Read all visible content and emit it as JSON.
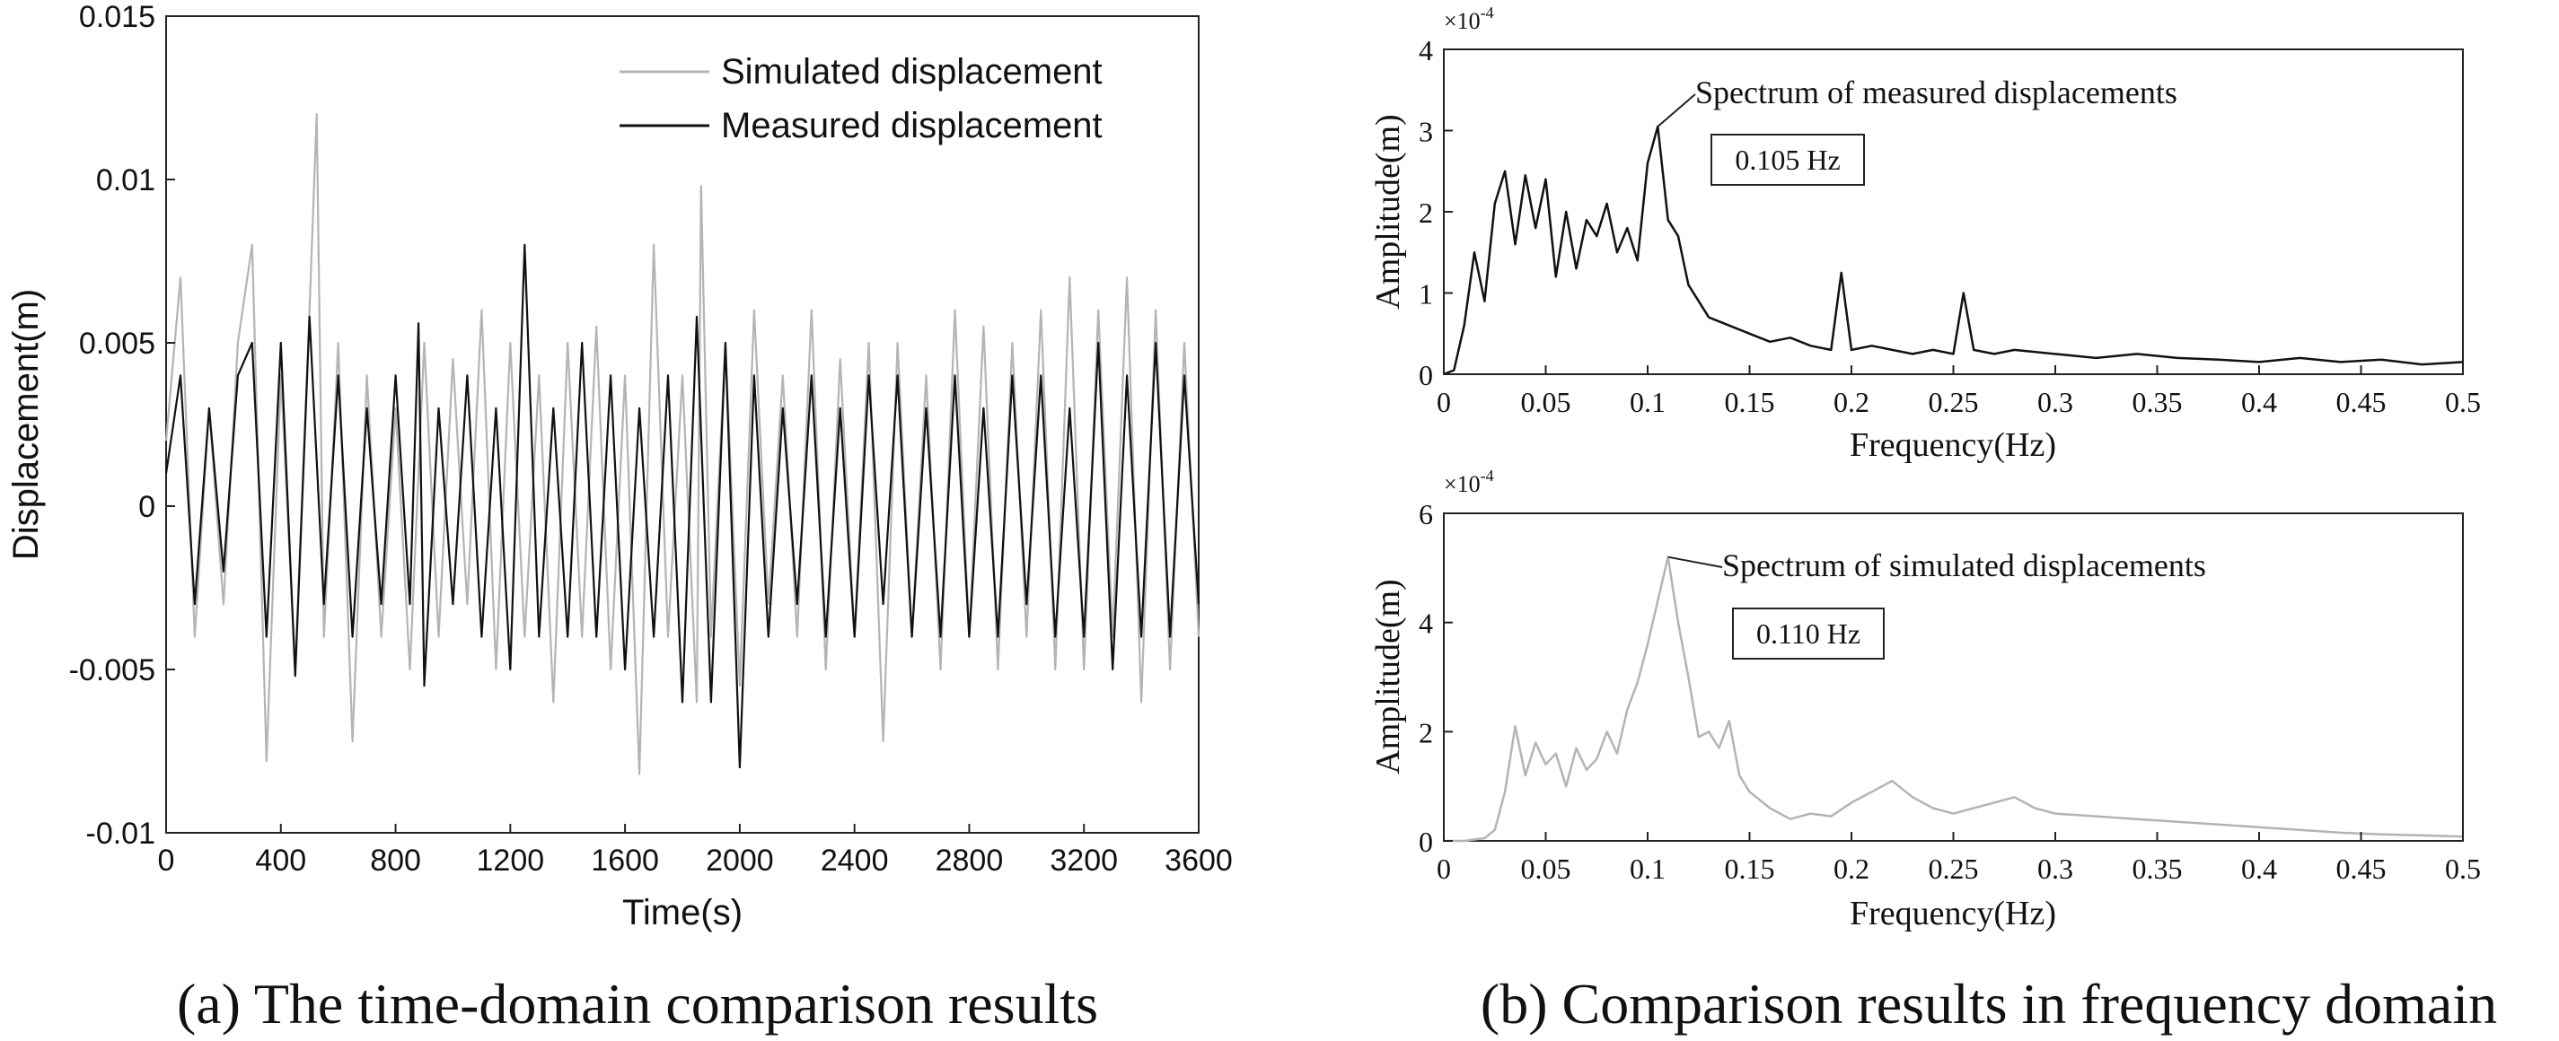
{
  "chart_data": [
    {
      "id": "time_domain",
      "type": "line",
      "title": "",
      "xlabel": "Time(s)",
      "ylabel": "Displacement(m)",
      "xlim": [
        0,
        3600
      ],
      "ylim": [
        -0.01,
        0.015
      ],
      "xticks": [
        0,
        400,
        800,
        1200,
        1600,
        2000,
        2400,
        2800,
        3200,
        3600
      ],
      "xtick_labels": [
        "0",
        "400",
        "800",
        "1200",
        "1600",
        "2000",
        "2400",
        "2800",
        "3200",
        "3600"
      ],
      "yticks": [
        -0.01,
        -0.005,
        0,
        0.005,
        0.01,
        0.015
      ],
      "ytick_labels": [
        "-0.01",
        "-0.005",
        "0",
        "0.005",
        "0.01",
        "0.015"
      ],
      "grid": false,
      "legend_position": "top-right",
      "series": [
        {
          "name": "Simulated displacement",
          "color": "#b4b4b4",
          "x": [
            0,
            50,
            100,
            150,
            200,
            250,
            300,
            350,
            400,
            450,
            500,
            525,
            550,
            600,
            650,
            700,
            750,
            800,
            850,
            900,
            950,
            1000,
            1050,
            1100,
            1150,
            1200,
            1250,
            1300,
            1350,
            1400,
            1450,
            1500,
            1550,
            1600,
            1650,
            1700,
            1750,
            1800,
            1850,
            1865,
            1900,
            1950,
            2000,
            2050,
            2100,
            2150,
            2200,
            2250,
            2300,
            2350,
            2400,
            2450,
            2500,
            2550,
            2600,
            2650,
            2700,
            2750,
            2800,
            2850,
            2900,
            2950,
            3000,
            3050,
            3100,
            3150,
            3200,
            3250,
            3300,
            3350,
            3400,
            3450,
            3500,
            3550,
            3600
          ],
          "values": [
            0.002,
            0.007,
            -0.004,
            0.003,
            -0.003,
            0.005,
            0.008,
            -0.0078,
            0.004,
            -0.005,
            0.006,
            0.012,
            -0.004,
            0.005,
            -0.0072,
            0.004,
            -0.004,
            0.003,
            -0.005,
            0.005,
            -0.004,
            0.0045,
            -0.003,
            0.006,
            -0.005,
            0.005,
            -0.004,
            0.004,
            -0.006,
            0.005,
            -0.004,
            0.0055,
            -0.005,
            0.004,
            -0.0082,
            0.008,
            -0.004,
            0.004,
            -0.006,
            0.0098,
            -0.004,
            0.005,
            -0.0055,
            0.006,
            -0.003,
            0.004,
            -0.004,
            0.006,
            -0.005,
            0.0045,
            -0.004,
            0.005,
            -0.0072,
            0.005,
            -0.004,
            0.004,
            -0.005,
            0.006,
            -0.004,
            0.0055,
            -0.005,
            0.005,
            -0.004,
            0.006,
            -0.005,
            0.007,
            -0.005,
            0.006,
            -0.004,
            0.007,
            -0.006,
            0.006,
            -0.005,
            0.005,
            -0.004
          ]
        },
        {
          "name": "Measured displacement",
          "color": "#111111",
          "x": [
            0,
            50,
            100,
            150,
            200,
            250,
            300,
            350,
            400,
            450,
            500,
            550,
            600,
            650,
            700,
            750,
            800,
            850,
            880,
            900,
            950,
            1000,
            1050,
            1100,
            1150,
            1200,
            1250,
            1300,
            1350,
            1400,
            1450,
            1500,
            1550,
            1600,
            1650,
            1700,
            1750,
            1800,
            1850,
            1900,
            1950,
            2000,
            2050,
            2100,
            2150,
            2200,
            2250,
            2300,
            2350,
            2400,
            2450,
            2500,
            2550,
            2600,
            2650,
            2700,
            2750,
            2800,
            2850,
            2900,
            2950,
            3000,
            3050,
            3100,
            3150,
            3200,
            3250,
            3300,
            3350,
            3400,
            3450,
            3500,
            3550,
            3600
          ],
          "values": [
            0.001,
            0.004,
            -0.003,
            0.003,
            -0.002,
            0.004,
            0.005,
            -0.004,
            0.005,
            -0.0052,
            0.0058,
            -0.003,
            0.004,
            -0.004,
            0.003,
            -0.003,
            0.004,
            -0.003,
            0.0056,
            -0.0055,
            0.003,
            -0.003,
            0.004,
            -0.004,
            0.003,
            -0.005,
            0.008,
            -0.004,
            0.003,
            -0.004,
            0.005,
            -0.004,
            0.004,
            -0.005,
            0.003,
            -0.004,
            0.004,
            -0.006,
            0.0058,
            -0.006,
            0.005,
            -0.008,
            0.004,
            -0.004,
            0.003,
            -0.003,
            0.004,
            -0.004,
            0.003,
            -0.004,
            0.004,
            -0.003,
            0.004,
            -0.004,
            0.003,
            -0.004,
            0.004,
            -0.004,
            0.003,
            -0.004,
            0.004,
            -0.003,
            0.004,
            -0.004,
            0.003,
            -0.004,
            0.005,
            -0.005,
            0.004,
            -0.004,
            0.005,
            -0.004,
            0.004,
            -0.003
          ]
        }
      ]
    },
    {
      "id": "measured_spectrum",
      "type": "line",
      "title": "",
      "xlabel": "Frequency(Hz)",
      "ylabel": "Amplitude(m)",
      "xlim": [
        0,
        0.5
      ],
      "ylim": [
        0,
        4
      ],
      "y_scale_label": "×10",
      "y_scale_exponent": "-4",
      "xticks": [
        0,
        0.05,
        0.1,
        0.15,
        0.2,
        0.25,
        0.3,
        0.35,
        0.4,
        0.45,
        0.5
      ],
      "xtick_labels": [
        "0",
        "0.05",
        "0.1",
        "0.15",
        "0.2",
        "0.25",
        "0.3",
        "0.35",
        "0.4",
        "0.45",
        "0.5"
      ],
      "yticks": [
        0,
        1,
        2,
        3,
        4
      ],
      "ytick_labels": [
        "0",
        "1",
        "2",
        "3",
        "4"
      ],
      "grid": false,
      "annotation": "Spectrum of measured displacements",
      "peak_label": "0.105 Hz",
      "peak_x": 0.105,
      "peak_y": 3.05,
      "series": [
        {
          "name": "Spectrum of measured displacements",
          "color": "#111111",
          "x": [
            0,
            0.005,
            0.01,
            0.015,
            0.02,
            0.025,
            0.03,
            0.035,
            0.04,
            0.045,
            0.05,
            0.055,
            0.06,
            0.065,
            0.07,
            0.075,
            0.08,
            0.085,
            0.09,
            0.095,
            0.1,
            0.105,
            0.11,
            0.115,
            0.12,
            0.125,
            0.13,
            0.14,
            0.15,
            0.16,
            0.17,
            0.18,
            0.19,
            0.195,
            0.2,
            0.21,
            0.22,
            0.23,
            0.24,
            0.25,
            0.255,
            0.26,
            0.27,
            0.28,
            0.3,
            0.32,
            0.34,
            0.36,
            0.38,
            0.4,
            0.42,
            0.44,
            0.46,
            0.48,
            0.5
          ],
          "values": [
            0,
            0.05,
            0.6,
            1.5,
            0.9,
            2.1,
            2.5,
            1.6,
            2.45,
            1.8,
            2.4,
            1.2,
            2.0,
            1.3,
            1.9,
            1.7,
            2.1,
            1.5,
            1.8,
            1.4,
            2.6,
            3.05,
            1.9,
            1.7,
            1.1,
            0.9,
            0.7,
            0.6,
            0.5,
            0.4,
            0.45,
            0.35,
            0.3,
            1.25,
            0.3,
            0.35,
            0.3,
            0.25,
            0.3,
            0.25,
            1.0,
            0.3,
            0.25,
            0.3,
            0.25,
            0.2,
            0.25,
            0.2,
            0.18,
            0.15,
            0.2,
            0.15,
            0.18,
            0.12,
            0.15
          ]
        }
      ]
    },
    {
      "id": "simulated_spectrum",
      "type": "line",
      "title": "",
      "xlabel": "Frequency(Hz)",
      "ylabel": "Amplitude(m)",
      "xlim": [
        0,
        0.5
      ],
      "ylim": [
        0,
        6
      ],
      "y_scale_label": "×10",
      "y_scale_exponent": "-4",
      "xticks": [
        0,
        0.05,
        0.1,
        0.15,
        0.2,
        0.25,
        0.3,
        0.35,
        0.4,
        0.45,
        0.5
      ],
      "xtick_labels": [
        "0",
        "0.05",
        "0.1",
        "0.15",
        "0.2",
        "0.25",
        "0.3",
        "0.35",
        "0.4",
        "0.45",
        "0.5"
      ],
      "yticks": [
        0,
        2,
        4,
        6
      ],
      "ytick_labels": [
        "0",
        "2",
        "4",
        "6"
      ],
      "grid": false,
      "annotation": "Spectrum of simulated displacements",
      "peak_label": "0.110 Hz",
      "peak_x": 0.11,
      "peak_y": 5.2,
      "series": [
        {
          "name": "Spectrum of simulated displacements",
          "color": "#b4b4b4",
          "x": [
            0,
            0.01,
            0.02,
            0.025,
            0.03,
            0.035,
            0.04,
            0.045,
            0.05,
            0.055,
            0.06,
            0.065,
            0.07,
            0.075,
            0.08,
            0.085,
            0.09,
            0.095,
            0.1,
            0.105,
            0.11,
            0.115,
            0.12,
            0.125,
            0.13,
            0.135,
            0.14,
            0.145,
            0.15,
            0.16,
            0.17,
            0.18,
            0.19,
            0.2,
            0.21,
            0.22,
            0.23,
            0.24,
            0.25,
            0.26,
            0.27,
            0.28,
            0.29,
            0.3,
            0.32,
            0.34,
            0.36,
            0.38,
            0.4,
            0.42,
            0.44,
            0.46,
            0.48,
            0.5
          ],
          "values": [
            0,
            0,
            0.05,
            0.2,
            0.9,
            2.1,
            1.2,
            1.8,
            1.4,
            1.6,
            1.0,
            1.7,
            1.3,
            1.5,
            2.0,
            1.6,
            2.4,
            2.9,
            3.6,
            4.4,
            5.2,
            4.0,
            3.0,
            1.9,
            2.0,
            1.7,
            2.2,
            1.2,
            0.9,
            0.6,
            0.4,
            0.5,
            0.45,
            0.7,
            0.9,
            1.1,
            0.8,
            0.6,
            0.5,
            0.6,
            0.7,
            0.8,
            0.6,
            0.5,
            0.45,
            0.4,
            0.35,
            0.3,
            0.25,
            0.2,
            0.15,
            0.12,
            0.1,
            0.08
          ]
        }
      ]
    }
  ],
  "captions": {
    "a": "(a) The time-domain comparison results",
    "b": "(b) Comparison results in frequency domain"
  }
}
